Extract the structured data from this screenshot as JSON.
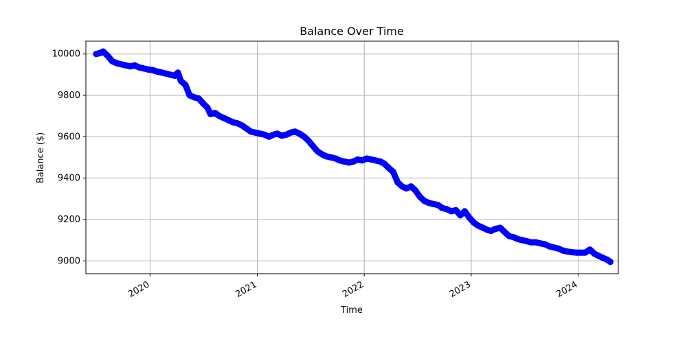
{
  "chart_data": {
    "type": "line",
    "title": "Balance Over Time",
    "xlabel": "Time",
    "ylabel": "Balance ($)",
    "grid": true,
    "marker": "circle",
    "series_color": "#0000ff",
    "xlim": [
      "2019-05-27",
      "2024-05-17"
    ],
    "ylim": [
      8938,
      10062
    ],
    "x_ticks": [
      {
        "date": "2020-01-01",
        "label": "2020"
      },
      {
        "date": "2021-01-01",
        "label": "2021"
      },
      {
        "date": "2022-01-01",
        "label": "2022"
      },
      {
        "date": "2023-01-01",
        "label": "2023"
      },
      {
        "date": "2024-01-01",
        "label": "2024"
      }
    ],
    "y_ticks": [
      9000,
      9200,
      9400,
      9600,
      9800,
      10000
    ],
    "series": [
      {
        "x": [
          "2019-07-01",
          "2019-07-15",
          "2019-07-25",
          "2019-08-10",
          "2019-08-25",
          "2019-09-10",
          "2019-09-25",
          "2019-10-10",
          "2019-10-25",
          "2019-11-10",
          "2019-11-25",
          "2019-12-10",
          "2019-12-25",
          "2020-01-10",
          "2020-01-25",
          "2020-02-10",
          "2020-02-25",
          "2020-03-10",
          "2020-03-25",
          "2020-04-05",
          "2020-04-15",
          "2020-05-01",
          "2020-05-15",
          "2020-06-01",
          "2020-06-15",
          "2020-07-01",
          "2020-07-15",
          "2020-07-25",
          "2020-08-10",
          "2020-08-25",
          "2020-09-10",
          "2020-09-25",
          "2020-10-10",
          "2020-10-25",
          "2020-11-10",
          "2020-11-25",
          "2020-12-10",
          "2020-12-25",
          "2021-01-10",
          "2021-01-25",
          "2021-02-10",
          "2021-02-25",
          "2021-03-10",
          "2021-03-25",
          "2021-04-10",
          "2021-04-25",
          "2021-05-10",
          "2021-05-25",
          "2021-06-10",
          "2021-06-25",
          "2021-07-10",
          "2021-07-25",
          "2021-08-10",
          "2021-08-25",
          "2021-09-10",
          "2021-09-25",
          "2021-10-10",
          "2021-10-25",
          "2021-11-10",
          "2021-11-25",
          "2021-12-10",
          "2021-12-25",
          "2022-01-10",
          "2022-01-25",
          "2022-02-10",
          "2022-02-25",
          "2022-03-10",
          "2022-03-25",
          "2022-04-10",
          "2022-04-25",
          "2022-05-10",
          "2022-05-25",
          "2022-06-10",
          "2022-06-25",
          "2022-07-10",
          "2022-07-25",
          "2022-08-10",
          "2022-08-25",
          "2022-09-10",
          "2022-09-25",
          "2022-10-10",
          "2022-10-25",
          "2022-11-10",
          "2022-11-25",
          "2022-12-10",
          "2022-12-25",
          "2023-01-10",
          "2023-01-25",
          "2023-02-10",
          "2023-02-25",
          "2023-03-10",
          "2023-03-25",
          "2023-04-10",
          "2023-04-25",
          "2023-05-10",
          "2023-05-25",
          "2023-06-10",
          "2023-06-25",
          "2023-07-10",
          "2023-07-25",
          "2023-08-10",
          "2023-08-25",
          "2023-09-10",
          "2023-09-25",
          "2023-10-10",
          "2023-10-25",
          "2023-11-10",
          "2023-11-25",
          "2023-12-10",
          "2023-12-25",
          "2024-01-10",
          "2024-01-25",
          "2024-02-10",
          "2024-02-25",
          "2024-03-10",
          "2024-03-25",
          "2024-04-10",
          "2024-04-20"
        ],
        "y": [
          10000,
          10005,
          10012,
          9990,
          9965,
          9955,
          9950,
          9945,
          9940,
          9945,
          9935,
          9930,
          9925,
          9922,
          9915,
          9910,
          9905,
          9900,
          9895,
          9910,
          9870,
          9850,
          9800,
          9790,
          9785,
          9760,
          9740,
          9710,
          9715,
          9700,
          9690,
          9680,
          9670,
          9665,
          9655,
          9640,
          9625,
          9620,
          9615,
          9610,
          9600,
          9610,
          9615,
          9605,
          9610,
          9620,
          9625,
          9615,
          9600,
          9580,
          9555,
          9530,
          9515,
          9505,
          9500,
          9495,
          9485,
          9480,
          9475,
          9480,
          9490,
          9485,
          9495,
          9490,
          9485,
          9480,
          9470,
          9450,
          9430,
          9380,
          9360,
          9350,
          9360,
          9340,
          9310,
          9290,
          9280,
          9275,
          9270,
          9255,
          9250,
          9240,
          9245,
          9220,
          9240,
          9210,
          9185,
          9170,
          9160,
          9150,
          9145,
          9155,
          9160,
          9140,
          9120,
          9115,
          9105,
          9100,
          9095,
          9090,
          9090,
          9085,
          9080,
          9070,
          9065,
          9060,
          9050,
          9045,
          9042,
          9040,
          9040,
          9040,
          9055,
          9035,
          9025,
          9015,
          9005,
          8995
        ]
      }
    ]
  }
}
